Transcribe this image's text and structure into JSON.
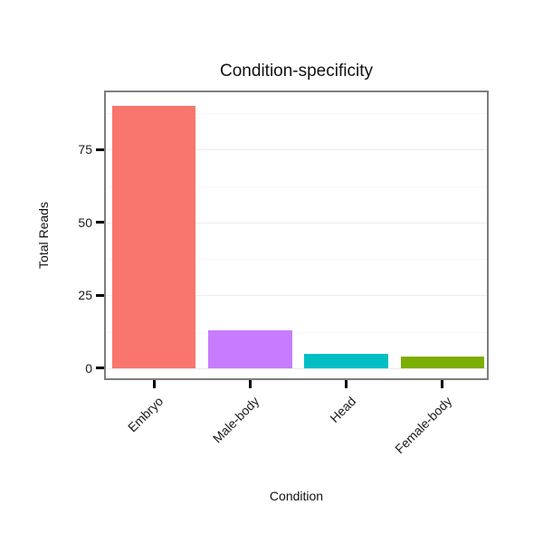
{
  "chart_data": {
    "type": "bar",
    "title": "Condition-specificity",
    "xlabel": "Condition",
    "ylabel": "Total Reads",
    "categories": [
      "Embryo",
      "Male-body",
      "Head",
      "Female-body"
    ],
    "values": [
      90,
      13,
      5,
      4
    ],
    "bar_colors": [
      "#F8766D",
      "#C77CFF",
      "#00BFC4",
      "#7CAE00"
    ],
    "yticks": [
      0,
      25,
      50,
      75
    ],
    "ylim": [
      -4.7,
      94.7
    ],
    "grid": true,
    "legend": false,
    "panel_border_color": "#7d7d7d",
    "gridline_major_color": "#ececec",
    "gridline_minor_color": "#f6f6f6",
    "tick_color": "#000000"
  }
}
